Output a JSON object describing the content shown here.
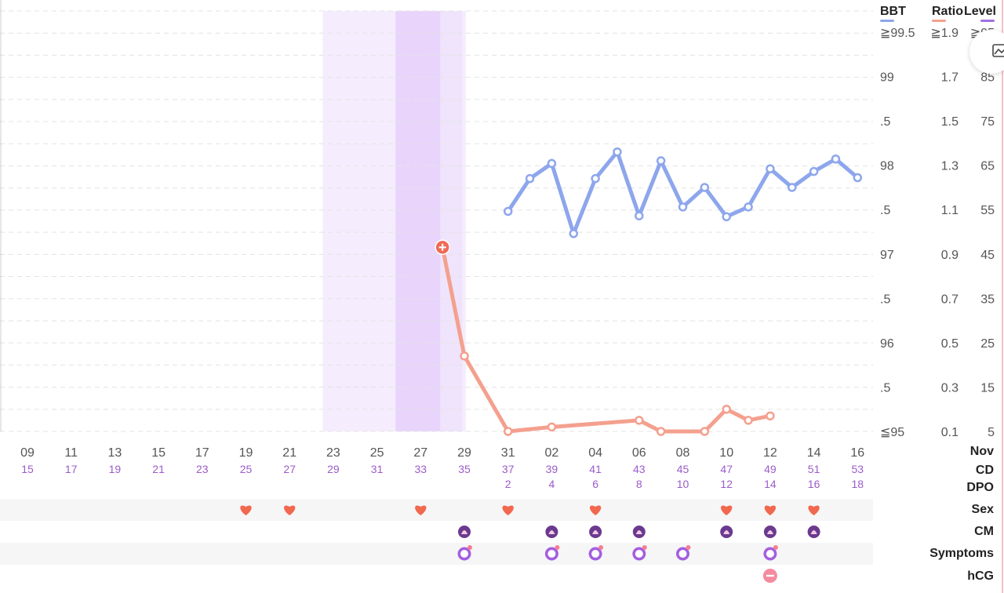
{
  "headers": {
    "bbt": "BBT",
    "ratio": "Ratio",
    "level": "Level"
  },
  "header_colors": {
    "bbt": "#8da6ec",
    "ratio": "#f4a08e",
    "level": "#a070e6"
  },
  "axes": {
    "bbt_ticks": [
      "≧99.5",
      "99",
      ".5",
      "98",
      ".5",
      "97",
      ".5",
      "96",
      ".5",
      "≦95"
    ],
    "ratio_ticks": [
      "≧1.9",
      "1.7",
      "1.5",
      "1.3",
      "1.1",
      "0.9",
      "0.7",
      "0.5",
      "0.3",
      "0.1"
    ],
    "level_ticks": [
      "≧95",
      "85",
      "75",
      "65",
      "55",
      "45",
      "35",
      "25",
      "15",
      "5"
    ]
  },
  "row_labels": {
    "month": "Nov",
    "cd": "CD",
    "dpo": "DPO",
    "sex": "Sex",
    "cm": "CM",
    "symptoms": "Symptoms",
    "hcg": "hCG"
  },
  "chart_data": {
    "type": "line",
    "x": [
      "09",
      "11",
      "13",
      "15",
      "17",
      "19",
      "21",
      "23",
      "25",
      "27",
      "29",
      "31",
      "02",
      "04",
      "06",
      "08",
      "10",
      "12",
      "14",
      "16"
    ],
    "cycle_day": [
      "15",
      "17",
      "19",
      "21",
      "23",
      "25",
      "27",
      "29",
      "31",
      "33",
      "35",
      "37",
      "39",
      "41",
      "43",
      "45",
      "47",
      "49",
      "51",
      "53"
    ],
    "dpo": [
      "",
      "",
      "",
      "",
      "",
      "",
      "",
      "",
      "",
      "",
      "",
      "2",
      "4",
      "6",
      "8",
      "10",
      "12",
      "14",
      "16",
      "18"
    ],
    "bbt_ylim": [
      95,
      99.5
    ],
    "ratio_ylim": [
      0.1,
      1.9
    ],
    "level_ylim": [
      5,
      95
    ],
    "fertile_window": {
      "from_cd": 29,
      "to_cd": 35
    },
    "peak_days": {
      "from_cd": 32,
      "to_cd": 33
    },
    "series": [
      {
        "name": "BBT",
        "axis": "bbt",
        "color": "#8da6ec",
        "points": [
          {
            "cd": 37,
            "y": 97.48
          },
          {
            "cd": 38,
            "y": 97.85
          },
          {
            "cd": 39,
            "y": 98.02
          },
          {
            "cd": 40,
            "y": 97.23
          },
          {
            "cd": 41,
            "y": 97.85
          },
          {
            "cd": 42,
            "y": 98.15
          },
          {
            "cd": 43,
            "y": 97.43
          },
          {
            "cd": 44,
            "y": 98.05
          },
          {
            "cd": 45,
            "y": 97.53
          },
          {
            "cd": 46,
            "y": 97.75
          },
          {
            "cd": 47,
            "y": 97.42
          },
          {
            "cd": 48,
            "y": 97.53
          },
          {
            "cd": 49,
            "y": 97.96
          },
          {
            "cd": 50,
            "y": 97.75
          },
          {
            "cd": 51,
            "y": 97.93
          },
          {
            "cd": 52,
            "y": 98.07
          },
          {
            "cd": 53,
            "y": 97.86
          }
        ]
      },
      {
        "name": "Ratio",
        "axis": "ratio",
        "color": "#f4a08e",
        "points": [
          {
            "cd": 34,
            "y": 0.93,
            "peak": true
          },
          {
            "cd": 35,
            "y": 0.44
          },
          {
            "cd": 37,
            "y": 0.1
          },
          {
            "cd": 39,
            "y": 0.12
          },
          {
            "cd": 43,
            "y": 0.15
          },
          {
            "cd": 44,
            "y": 0.1
          },
          {
            "cd": 46,
            "y": 0.1
          },
          {
            "cd": 47,
            "y": 0.2
          },
          {
            "cd": 48,
            "y": 0.15
          },
          {
            "cd": 49,
            "y": 0.17
          }
        ]
      }
    ],
    "sex_days": [
      25,
      27,
      33,
      37,
      41,
      47,
      49,
      51
    ],
    "cm_days": [
      35,
      39,
      41,
      43,
      47,
      49,
      51
    ],
    "symptom_days": [
      35,
      39,
      41,
      43,
      45,
      49
    ],
    "hcg_days": [
      49
    ]
  },
  "icons": {
    "sex": "heart-icon",
    "cm": "cervical-mucus-icon",
    "symptoms": "symptom-icon",
    "hcg": "hcg-negative-icon",
    "peak": "peak-plus-icon",
    "zoom": "image-icon"
  }
}
